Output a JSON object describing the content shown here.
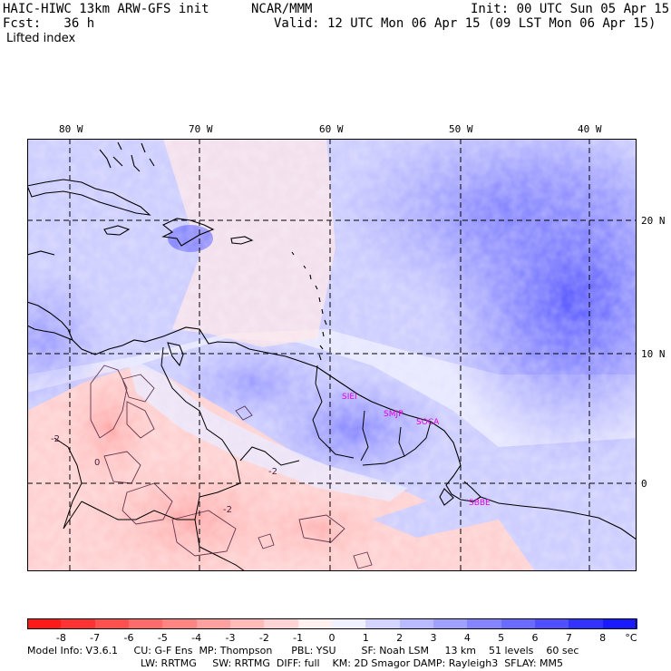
{
  "header": {
    "model": "HAIC-HIWC 13km ARW-GFS init",
    "org": "NCAR/MMM",
    "init": "Init: 00 UTC Sun 05 Apr 15",
    "fcst": "Fcst:   36 h",
    "valid": "Valid: 12 UTC Mon 06 Apr 15 (09 LST Mon 06 Apr 15)",
    "field": "Lifted index"
  },
  "map": {
    "lon_labels": [
      "80 W",
      "70 W",
      "60 W",
      "50 W",
      "40 W"
    ],
    "lat_labels": [
      "20 N",
      "10 N",
      "0"
    ],
    "stations": [
      "SIEI",
      "SMJP",
      "SOCA",
      "SBBE"
    ],
    "station_color": "#e000e0",
    "contour_labels": [
      "-2",
      "-2",
      "-2",
      "0"
    ]
  },
  "colorbar": {
    "labels": [
      "-8",
      "-7",
      "-6",
      "-5",
      "-4",
      "-3",
      "-2",
      "-1",
      "0",
      "1",
      "2",
      "3",
      "4",
      "5",
      "6",
      "7",
      "8"
    ],
    "unit": "°C",
    "colors": [
      "#ff1a1a",
      "#ff3333",
      "#ff5050",
      "#ff6b6b",
      "#ff8585",
      "#ffa0a0",
      "#ffbaba",
      "#ffd4d4",
      "#fff0f0",
      "#f0f0ff",
      "#d4d4ff",
      "#babaff",
      "#a0a0ff",
      "#8585ff",
      "#6b6bff",
      "#5050ff",
      "#3333ff",
      "#1a1aff"
    ]
  },
  "info": {
    "line1": "Model Info: V3.6.1     CU: G-F Ens  MP: Thompson      PBL: YSU        SF: Noah LSM     13 km    51 levels    60 sec",
    "line2": "LW: RRTMG     SW: RRTMG  DIFF: full    KM: 2D Smagor DAMP: Rayleigh3  SFLAY: MM5"
  }
}
